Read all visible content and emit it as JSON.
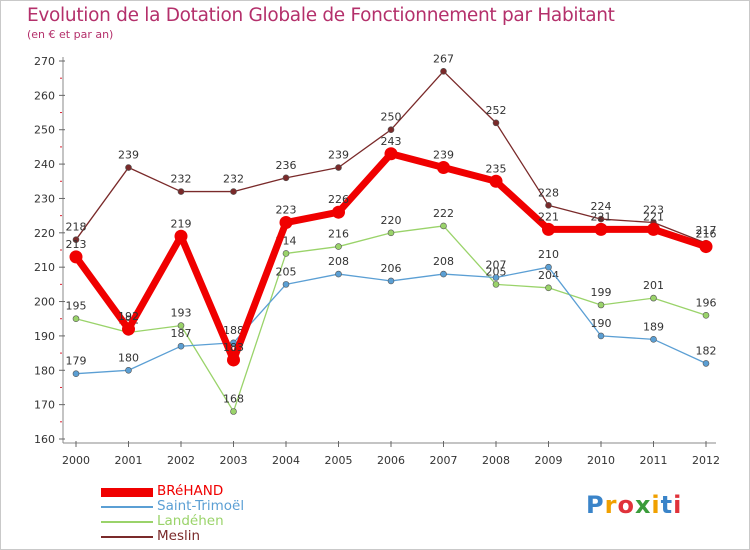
{
  "title": "Evolution de la Dotation Globale de Fonctionnement par Habitant",
  "subtitle": "(en € et par an)",
  "logo": {
    "text": "Proxiti",
    "colors": [
      "#3a84c9",
      "#f0a000",
      "#e0323a",
      "#3a9c3a",
      "#f0a000",
      "#3a84c9",
      "#e0323a"
    ]
  },
  "chart_data": {
    "type": "line",
    "title": "Evolution de la Dotation Globale de Fonctionnement par Habitant",
    "subtitle": "(en € et par an)",
    "xlabel": "",
    "ylabel": "",
    "x": [
      "2000",
      "2001",
      "2002",
      "2003",
      "2004",
      "2005",
      "2006",
      "2007",
      "2008",
      "2009",
      "2010",
      "2011",
      "2012"
    ],
    "ylim": [
      160,
      270
    ],
    "yticks": [
      "160",
      "170",
      "180",
      "190",
      "200",
      "210",
      "220",
      "230",
      "240",
      "250",
      "260",
      "270"
    ],
    "grid": false,
    "legend_position": "bottom-left",
    "series": [
      {
        "name": "Meslin",
        "color": "#7a2a2a",
        "values": [
          218,
          239,
          232,
          232,
          236,
          239,
          250,
          267,
          252,
          228,
          224,
          223,
          217
        ]
      },
      {
        "name": "Landéhen",
        "color": "#9ad36a",
        "values": [
          195,
          191,
          193,
          168,
          214,
          216,
          220,
          222,
          205,
          204,
          199,
          201,
          196
        ]
      },
      {
        "name": "Saint-Trimoël",
        "color": "#5b9fd4",
        "values": [
          179,
          180,
          187,
          188,
          205,
          208,
          206,
          208,
          207,
          210,
          190,
          189,
          182
        ]
      },
      {
        "name": "BRéHAND",
        "color": "#f00000",
        "values": [
          213,
          192,
          219,
          183,
          223,
          226,
          243,
          239,
          235,
          221,
          221,
          221,
          216
        ]
      }
    ]
  }
}
